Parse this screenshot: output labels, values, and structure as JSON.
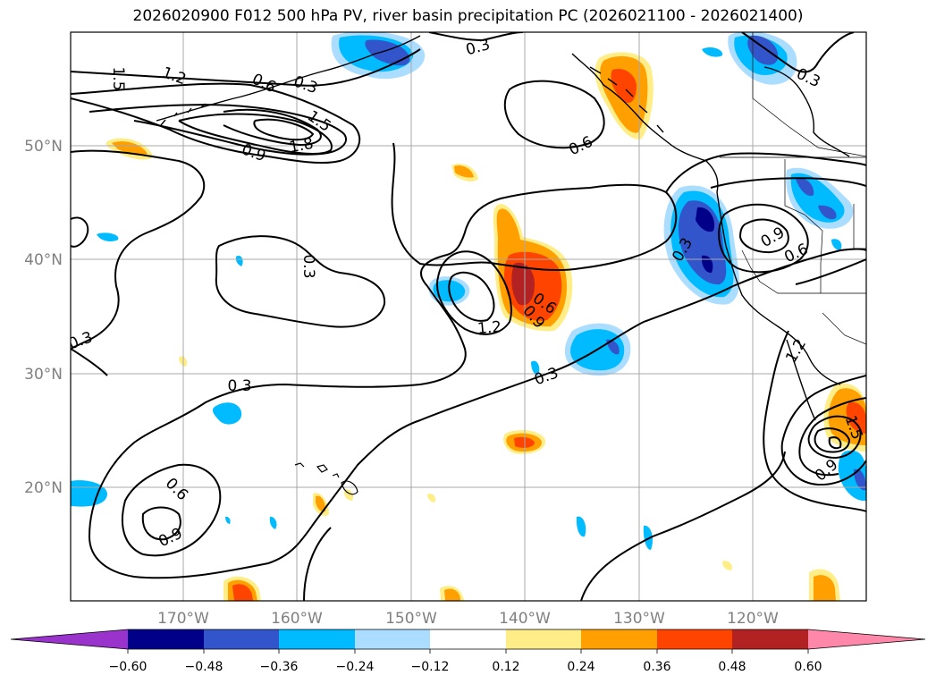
{
  "title": "2026020900 F012 500 hPa PV, river basin precipitation PC (2026021100 - 2026021400)",
  "lat_labels": [
    "50°N",
    "40°N",
    "30°N",
    "20°N"
  ],
  "lon_labels": [
    "170°W",
    "160°W",
    "150°W",
    "140°W",
    "130°W",
    "120°W"
  ],
  "colorbar": {
    "tick_labels": [
      "−0.60",
      "−0.48",
      "−0.36",
      "−0.24",
      "−0.12",
      "0.12",
      "0.24",
      "0.36",
      "0.48",
      "0.60"
    ],
    "colors": [
      "#9933cc",
      "#000088",
      "#3355cc",
      "#00bbff",
      "#aaddff",
      "#ffffff",
      "#ffee88",
      "#ffa000",
      "#ff4400",
      "#b22222",
      "#ff88aa"
    ]
  },
  "contour_labels": [
    {
      "id": "c-1",
      "text": "1.5"
    },
    {
      "id": "c-2",
      "text": "1.2"
    },
    {
      "id": "c-3",
      "text": "0.6"
    },
    {
      "id": "c-4",
      "text": "0.3"
    },
    {
      "id": "c-5",
      "text": "1.5"
    },
    {
      "id": "c-6",
      "text": "1.8"
    },
    {
      "id": "c-7",
      "text": "0.9"
    },
    {
      "id": "c-8",
      "text": "0.3"
    },
    {
      "id": "c-9",
      "text": "0.6"
    },
    {
      "id": "c-10",
      "text": "0.3"
    },
    {
      "id": "c-11",
      "text": "0.3"
    },
    {
      "id": "c-12",
      "text": "0.6"
    },
    {
      "id": "c-13",
      "text": "0.9"
    },
    {
      "id": "c-14",
      "text": "1.2"
    },
    {
      "id": "c-15",
      "text": "0.3"
    },
    {
      "id": "c-16",
      "text": "0.3"
    },
    {
      "id": "c-17",
      "text": "0.9"
    },
    {
      "id": "c-18",
      "text": "0.6"
    },
    {
      "id": "c-19",
      "text": "0.3"
    },
    {
      "id": "c-20",
      "text": "0.3"
    },
    {
      "id": "c-21",
      "text": "0.6"
    },
    {
      "id": "c-22",
      "text": "0.9"
    },
    {
      "id": "c-23",
      "text": "1.5"
    },
    {
      "id": "c-24",
      "text": "0.9"
    },
    {
      "id": "c-25",
      "text": "1.2"
    }
  ]
}
